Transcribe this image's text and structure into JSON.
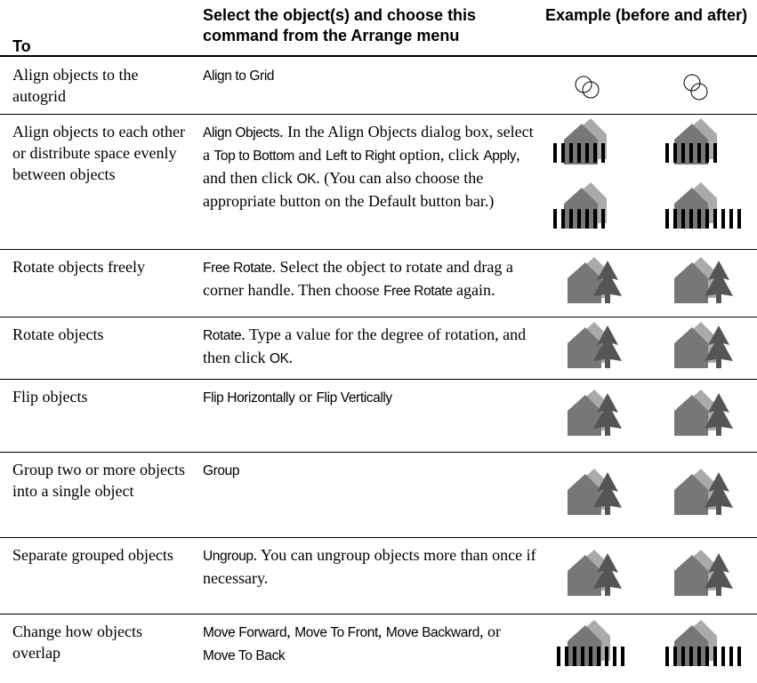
{
  "table": {
    "headers": [
      "To",
      "Select the object(s) and choose this command from the Arrange menu",
      "Example (before and after)"
    ],
    "rows": [
      {
        "task": "Align objects to the autogrid",
        "command": [
          {
            "ui": "Align to Grid"
          }
        ]
      },
      {
        "task": "Align objects to each other or distribute space evenly between objects",
        "command": [
          {
            "ui": "Align Objects"
          },
          {
            "text": ". In the Align Objects dialog box, select a "
          },
          {
            "ui": "Top to Bottom"
          },
          {
            "text": " and "
          },
          {
            "ui": "Left to Right"
          },
          {
            "text": " option, click "
          },
          {
            "ui": "Apply"
          },
          {
            "text": ", and then click "
          },
          {
            "ui": "OK"
          },
          {
            "text": ". (You can also choose the appropriate button on the Default button bar.)"
          }
        ]
      },
      {
        "task": "Rotate objects freely",
        "command": [
          {
            "ui": "Free Rotate"
          },
          {
            "text": ". Select the object to rotate and drag a corner handle. Then choose "
          },
          {
            "ui": "Free Rotate"
          },
          {
            "text": " again."
          }
        ]
      },
      {
        "task": "Rotate objects",
        "command": [
          {
            "ui": "Rotate"
          },
          {
            "text": ". Type a value for the degree of rotation, and then click "
          },
          {
            "ui": "OK"
          },
          {
            "text": "."
          }
        ]
      },
      {
        "task": "Flip objects",
        "command": [
          {
            "ui": "Flip Horizontally"
          },
          {
            "text": " or "
          },
          {
            "ui": "Flip Vertically"
          }
        ]
      },
      {
        "task": "Group two or more objects into a single object",
        "command": [
          {
            "ui": "Group"
          }
        ]
      },
      {
        "task": "Separate grouped objects",
        "command": [
          {
            "ui": "Ungroup"
          },
          {
            "text": ". You can ungroup objects more than once if necessary."
          }
        ]
      },
      {
        "task": "Change how objects overlap",
        "command": [
          {
            "ui": "Move Forward"
          },
          {
            "text": ", "
          },
          {
            "ui": "Move To Front"
          },
          {
            "text": ", "
          },
          {
            "ui": "Move Backward"
          },
          {
            "text": ", or "
          },
          {
            "ui": "Move To Back"
          }
        ]
      }
    ]
  }
}
